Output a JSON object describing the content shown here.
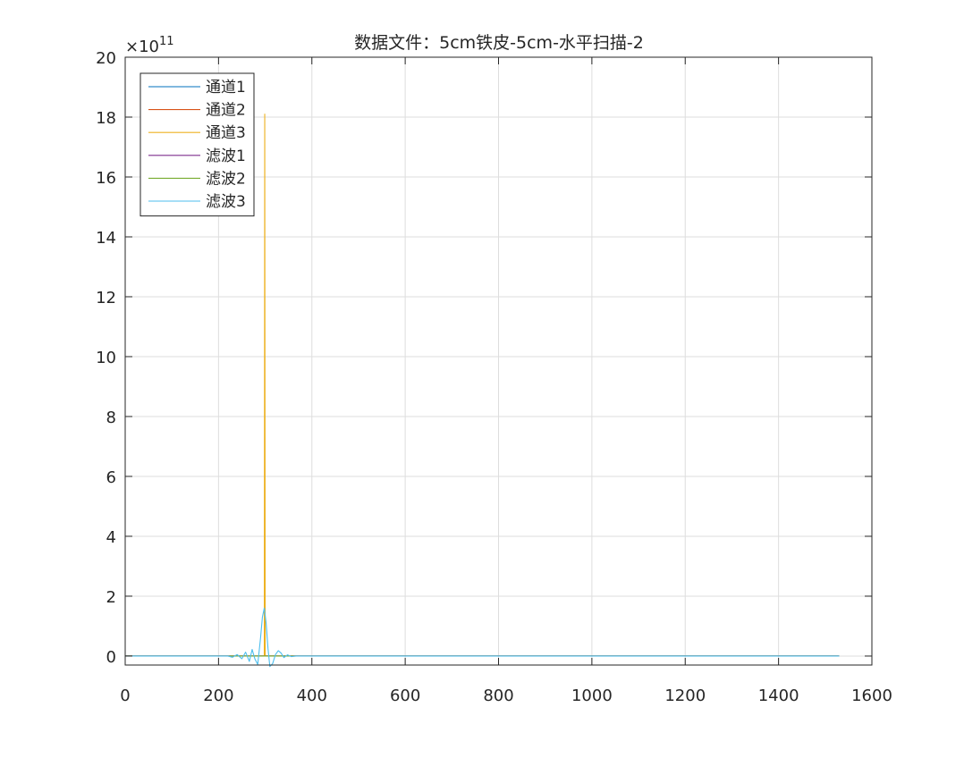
{
  "chart_data": {
    "type": "line",
    "title": "数据文件：5cm铁皮-5cm-水平扫描-2",
    "xlabel": "",
    "ylabel": "",
    "xlim": [
      0,
      1600
    ],
    "ylim": [
      -0.3,
      20
    ],
    "x_ticks": [
      "0",
      "200",
      "400",
      "600",
      "800",
      "1000",
      "1200",
      "1400",
      "1600"
    ],
    "y_ticks": [
      "0",
      "2",
      "4",
      "6",
      "8",
      "10",
      "12",
      "14",
      "16",
      "18",
      "20"
    ],
    "y_exponent": {
      "base": "×10",
      "power": "11"
    },
    "grid": true,
    "legend_position": "top-left",
    "colors": {
      "通道1": "#0072BD",
      "通道2": "#D95319",
      "通道3": "#EDB120",
      "滤波1": "#7E2F8E",
      "滤波2": "#77AC30",
      "滤波3": "#4DBEEE"
    },
    "series": [
      {
        "name": "通道1",
        "x": [
          0,
          298,
          299,
          300,
          1530
        ],
        "y": [
          0,
          0,
          0.2,
          0,
          0
        ]
      },
      {
        "name": "通道2",
        "x": [
          0,
          298,
          299,
          300,
          1530
        ],
        "y": [
          0,
          0,
          0.5,
          0,
          0
        ]
      },
      {
        "name": "通道3",
        "x": [
          0,
          298,
          299,
          300,
          1530
        ],
        "y": [
          0,
          0,
          18.1,
          0,
          0
        ]
      },
      {
        "name": "滤波1",
        "x": [
          0,
          1530
        ],
        "y": [
          0,
          0
        ]
      },
      {
        "name": "滤波2",
        "x": [
          0,
          1530
        ],
        "y": [
          0,
          0
        ]
      },
      {
        "name": "滤波3",
        "x": [
          0,
          220,
          230,
          240,
          250,
          258,
          266,
          272,
          278,
          284,
          290,
          294,
          298,
          302,
          306,
          310,
          316,
          322,
          328,
          334,
          340,
          348,
          356,
          366,
          1530
        ],
        "y": [
          0,
          0,
          -0.04,
          0.05,
          -0.09,
          0.13,
          -0.18,
          0.22,
          -0.1,
          -0.28,
          0.6,
          1.3,
          1.6,
          1.1,
          0.25,
          -0.35,
          -0.25,
          0.05,
          0.18,
          0.1,
          -0.05,
          0.04,
          -0.02,
          0,
          0
        ]
      }
    ]
  }
}
